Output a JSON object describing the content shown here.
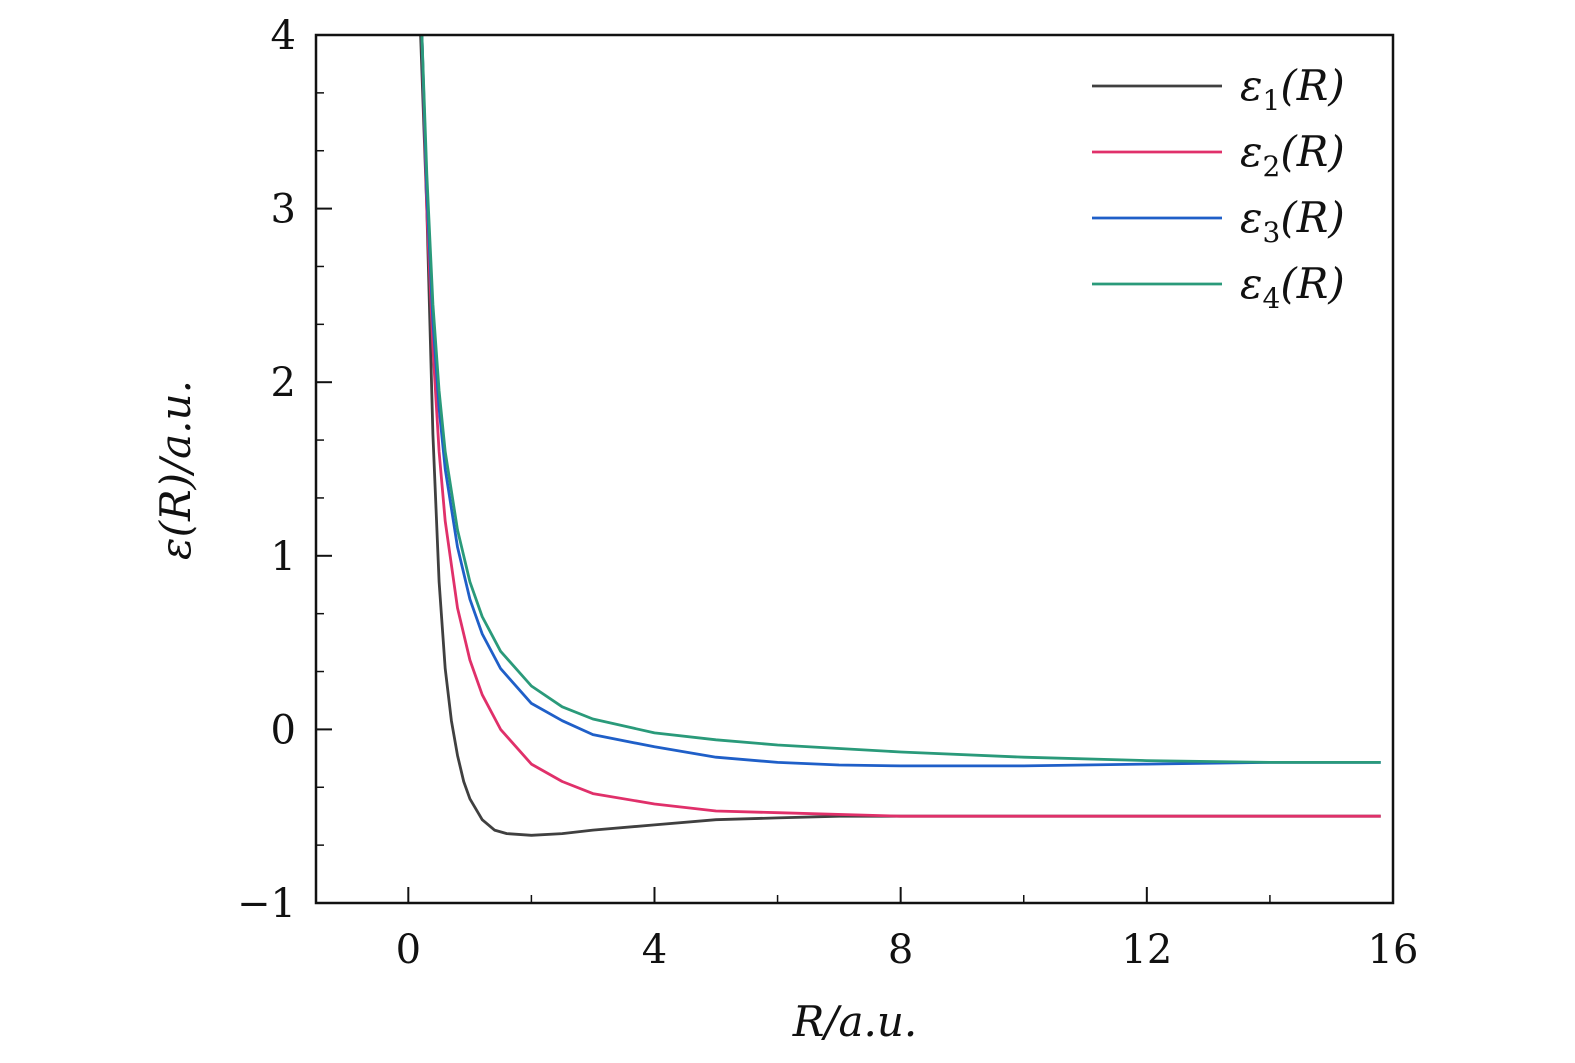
{
  "chart_data": {
    "type": "line",
    "title": "",
    "xlabel": "R/a.u.",
    "ylabel": "ε(R)/a.u.",
    "xlim": [
      -1.5,
      16
    ],
    "ylim": [
      -1,
      4
    ],
    "xticks": [
      0,
      4,
      8,
      12,
      16
    ],
    "xtick_labels": [
      "0",
      "4",
      "8",
      "12",
      "16"
    ],
    "yticks": [
      -1,
      0,
      1,
      2,
      3,
      4
    ],
    "ytick_labels": [
      "−1",
      "0",
      "1",
      "2",
      "3",
      "4"
    ],
    "grid": false,
    "legend_position": "top-right",
    "series": [
      {
        "name": "ε1(R)",
        "label_base": "ε",
        "label_sub": "1",
        "label_rest": "(R)",
        "color": "#404040",
        "x": [
          0.2,
          0.3,
          0.4,
          0.5,
          0.6,
          0.7,
          0.8,
          0.9,
          1.0,
          1.2,
          1.4,
          1.6,
          2.0,
          2.5,
          3.0,
          4.0,
          5.0,
          6.0,
          7.0,
          8.0,
          10.0,
          12.0,
          14.0,
          15.8
        ],
        "y": [
          4.0,
          3.0,
          1.7,
          0.85,
          0.35,
          0.05,
          -0.15,
          -0.3,
          -0.4,
          -0.52,
          -0.58,
          -0.6,
          -0.61,
          -0.6,
          -0.58,
          -0.55,
          -0.52,
          -0.51,
          -0.5,
          -0.5,
          -0.5,
          -0.5,
          -0.5,
          -0.5
        ]
      },
      {
        "name": "ε2(R)",
        "label_base": "ε",
        "label_sub": "2",
        "label_rest": "(R)",
        "color": "#e0306a",
        "x": [
          0.22,
          0.3,
          0.4,
          0.5,
          0.6,
          0.8,
          1.0,
          1.2,
          1.5,
          2.0,
          2.5,
          3.0,
          4.0,
          5.0,
          6.0,
          8.0,
          10.0,
          12.0,
          14.0,
          15.8
        ],
        "y": [
          4.0,
          3.0,
          2.2,
          1.6,
          1.2,
          0.7,
          0.4,
          0.2,
          0.0,
          -0.2,
          -0.3,
          -0.37,
          -0.43,
          -0.47,
          -0.48,
          -0.5,
          -0.5,
          -0.5,
          -0.5,
          -0.5
        ]
      },
      {
        "name": "ε3(R)",
        "label_base": "ε",
        "label_sub": "3",
        "label_rest": "(R)",
        "color": "#1f5fc8",
        "x": [
          0.22,
          0.3,
          0.4,
          0.5,
          0.6,
          0.8,
          1.0,
          1.2,
          1.5,
          2.0,
          2.5,
          3.0,
          4.0,
          5.0,
          6.0,
          7.0,
          8.0,
          10.0,
          12.0,
          14.0,
          15.8
        ],
        "y": [
          4.0,
          3.1,
          2.35,
          1.85,
          1.5,
          1.05,
          0.75,
          0.55,
          0.35,
          0.15,
          0.05,
          -0.03,
          -0.1,
          -0.16,
          -0.19,
          -0.205,
          -0.21,
          -0.21,
          -0.2,
          -0.19,
          -0.19
        ]
      },
      {
        "name": "ε4(R)",
        "label_base": "ε",
        "label_sub": "4",
        "label_rest": "(R)",
        "color": "#2a9a7a",
        "x": [
          0.22,
          0.3,
          0.4,
          0.5,
          0.6,
          0.8,
          1.0,
          1.2,
          1.5,
          2.0,
          2.5,
          3.0,
          4.0,
          5.0,
          6.0,
          7.0,
          8.0,
          10.0,
          12.0,
          14.0,
          15.8
        ],
        "y": [
          4.0,
          3.2,
          2.45,
          1.95,
          1.6,
          1.15,
          0.85,
          0.65,
          0.45,
          0.25,
          0.13,
          0.06,
          -0.02,
          -0.06,
          -0.09,
          -0.11,
          -0.13,
          -0.16,
          -0.18,
          -0.19,
          -0.19
        ]
      }
    ]
  }
}
